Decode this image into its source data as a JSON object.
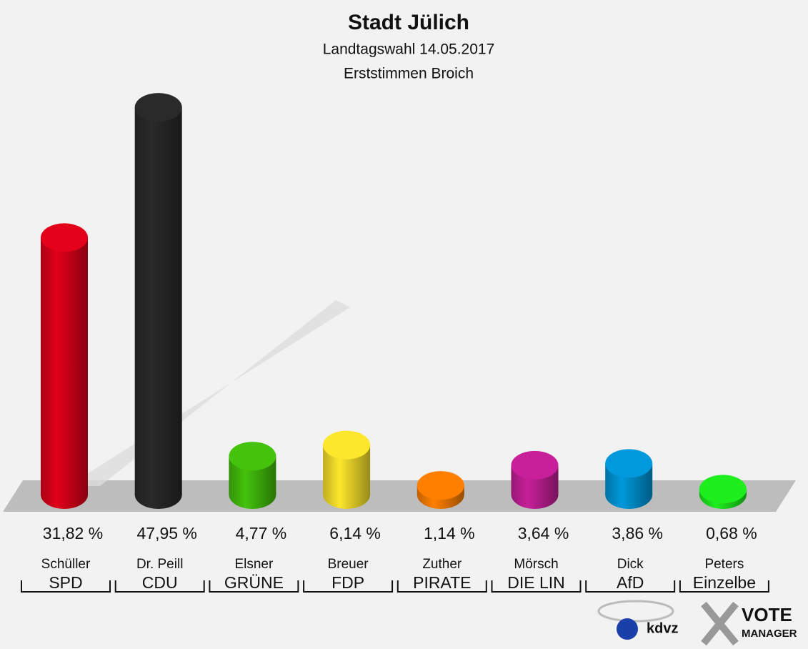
{
  "chart_data": {
    "type": "bar",
    "title": "Stadt Jülich",
    "subtitle": "Landtagswahl 14.05.2017",
    "subtitle2": "Erststimmen Broich",
    "categories": [
      "Schüller",
      "Dr. Peill",
      "Elsner",
      "Breuer",
      "Zuther",
      "Mörsch",
      "Dick",
      "Peters"
    ],
    "parties": [
      "SPD",
      "CDU",
      "GRÜNE",
      "FDP",
      "PIRATE",
      "DIE LIN",
      "AfD",
      "Einzelbe"
    ],
    "values": [
      31.82,
      47.95,
      4.77,
      6.14,
      1.14,
      3.64,
      3.86,
      0.68
    ],
    "value_labels": [
      "31,82 %",
      "47,95 %",
      "4,77 %",
      "6,14 %",
      "1,14 %",
      "3,64 %",
      "3,86 %",
      "0,68 %"
    ],
    "colors": [
      "#e2001a",
      "#2a2a2a",
      "#44c20c",
      "#fde72c",
      "#ff8000",
      "#c8209a",
      "#0099dc",
      "#1eee1e"
    ]
  },
  "logo": {
    "left": "kdvz",
    "right_top": "VOTE",
    "right_bottom": "MANAGER"
  }
}
